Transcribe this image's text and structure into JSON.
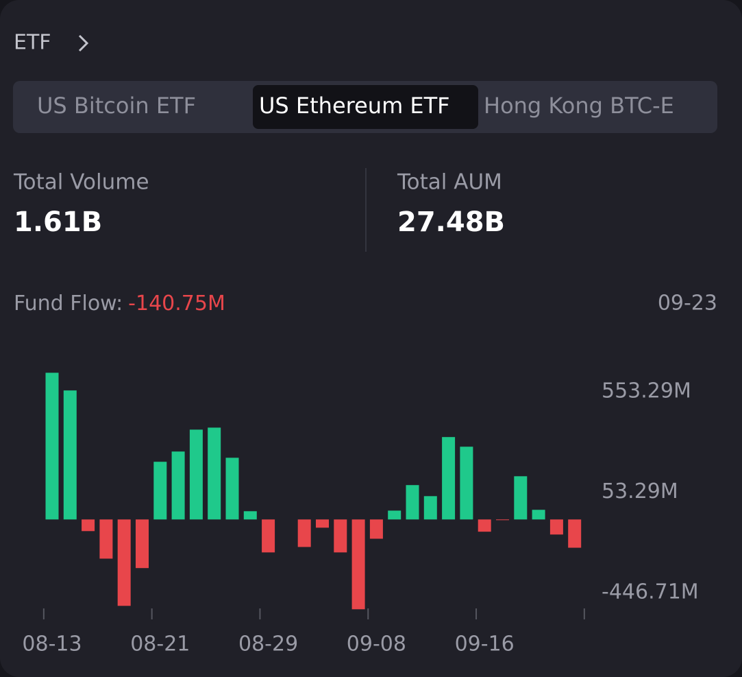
{
  "header": {
    "title": "ETF"
  },
  "tabs": [
    "US Bitcoin ETF",
    "US Ethereum ETF",
    "Hong Kong BTC-E"
  ],
  "active_tab": 1,
  "stats": [
    {
      "label": "Total Volume",
      "value": "1.61B"
    },
    {
      "label": "Total AUM",
      "value": "27.48B"
    }
  ],
  "chart_data": {
    "type": "bar",
    "fund_flow_label": "Fund Flow:",
    "fund_flow_value": "-140.75M",
    "selected_date": "09-23",
    "categories": [
      "08-13",
      null,
      null,
      null,
      null,
      null,
      "08-21",
      null,
      null,
      null,
      null,
      null,
      "08-29",
      null,
      null,
      null,
      null,
      null,
      "09-08",
      null,
      null,
      null,
      null,
      null,
      "09-16",
      null,
      null,
      null,
      null,
      null
    ],
    "values": [
      730,
      642,
      -58,
      -195,
      -430,
      -242,
      287,
      338,
      447,
      457,
      307,
      41,
      -164,
      null,
      -137,
      -41,
      -164,
      -447,
      -96,
      44,
      171,
      116,
      410,
      362,
      -61,
      -3,
      215,
      48,
      -75,
      -140.75
    ],
    "positive_color": "#1fc98b",
    "negative_color": "#e8464b",
    "ylim": [
      -470,
      810
    ],
    "yticks": [
      {
        "value": 553.29,
        "label": "553.29M"
      },
      {
        "value": 53.29,
        "label": "53.29M"
      },
      {
        "value": -446.71,
        "label": "-446.71M"
      }
    ]
  }
}
